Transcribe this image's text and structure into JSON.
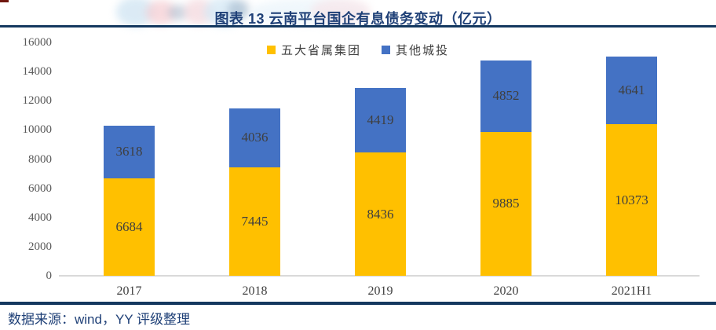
{
  "header": {
    "title": "图表 13  云南平台国企有息债务变动（亿元）"
  },
  "footer": {
    "source_text": "数据来源：wind，YY 评级整理"
  },
  "colors": {
    "series_gold": "#FFC000",
    "series_blue": "#4472C4",
    "heading_blue": "#1F4077",
    "rule_navy": "#14385F",
    "axis_line_gray": "#D9D9D9",
    "tick_text_gray": "#595959",
    "data_label_gray": "#3f3f3f",
    "corner_mark_red": "#701710"
  },
  "chart_data": {
    "type": "bar",
    "stacked": true,
    "title": "图表 13  云南平台国企有息债务变动（亿元）",
    "unit": "亿元",
    "categories": [
      "2017",
      "2018",
      "2019",
      "2020",
      "2021H1"
    ],
    "series": [
      {
        "name": "五大省属集团",
        "color": "#FFC000",
        "values": [
          6684,
          7445,
          8436,
          9885,
          10373
        ]
      },
      {
        "name": "其他城投",
        "color": "#4472C4",
        "values": [
          3618,
          4036,
          4419,
          4852,
          4641
        ]
      }
    ],
    "ylim": [
      0,
      16000
    ],
    "yticks": [
      0,
      2000,
      4000,
      6000,
      8000,
      10000,
      12000,
      14000,
      16000
    ],
    "grid": false,
    "legend_position": "top-center"
  }
}
